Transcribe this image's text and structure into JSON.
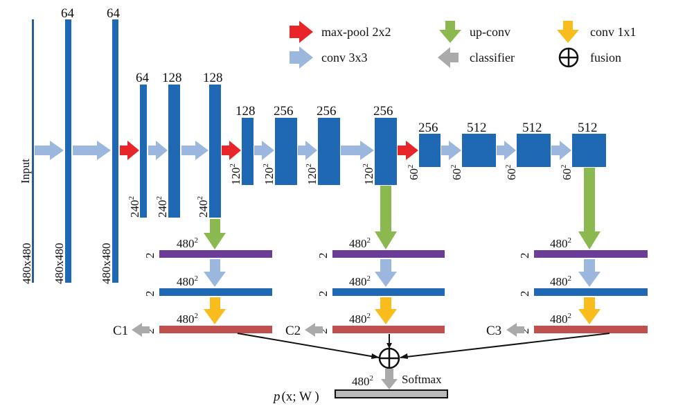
{
  "colors": {
    "block": "#1f68b4",
    "input_bar": "#2c5d93",
    "arrow_conv": "#9bb7de",
    "arrow_pool": "#e8262a",
    "arrow_upconv": "#8cb94f",
    "arrow_conv1x1": "#f8bd1c",
    "arrow_classifier": "#aaaaaa",
    "bar_purple": "#6c3d96",
    "bar_blue": "#1f68b4",
    "bar_red": "#c0504d",
    "bar_gray": "#bbbbbb",
    "line": "#111111"
  },
  "legend": {
    "maxpool": "max-pool 2x2",
    "conv3x3": "conv 3x3",
    "upconv": "up-conv",
    "classifier": "classifier",
    "conv1x1": "conv 1x1",
    "fusion": "fusion"
  },
  "input_label": "Input",
  "encoder": {
    "stage1": {
      "size": "480x480",
      "channels": [
        "64",
        "64"
      ]
    },
    "stage2": {
      "size": "240",
      "channels": [
        "64",
        "128",
        "128"
      ]
    },
    "stage3": {
      "size": "120",
      "channels": [
        "128",
        "256",
        "256",
        "256"
      ]
    },
    "stage4": {
      "size": "60",
      "channels": [
        "256",
        "512",
        "512",
        "512"
      ]
    }
  },
  "side_outputs": {
    "size": "480",
    "channel": "2",
    "classifiers": [
      "C1",
      "C2",
      "C3"
    ]
  },
  "output": {
    "size": "480",
    "softmax": "Softmax",
    "formula_p": "p",
    "formula_args": "(x; W )"
  },
  "superscript": "2"
}
